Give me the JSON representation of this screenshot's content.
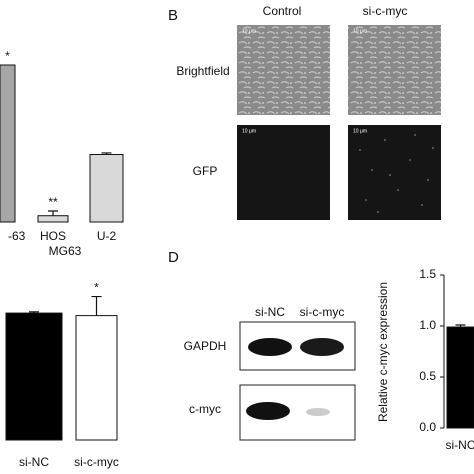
{
  "panel_labels": [
    "B",
    "D"
  ],
  "images": {
    "columns": [
      "Control",
      "si-c-myc"
    ],
    "rows": [
      "Brightfield",
      "GFP"
    ],
    "scale_bar": "10 μm"
  },
  "western_blot": {
    "lanes": [
      "si-NC",
      "si-c-myc"
    ],
    "rows": [
      "GAPDH",
      "c-myc"
    ]
  },
  "chart_data": [
    {
      "type": "bar",
      "categories": [
        "-63",
        "HOS",
        "U-2"
      ],
      "values": [
        1.0,
        0.04,
        0.43
      ],
      "errors": [
        null,
        0.03,
        0.01
      ],
      "annotations": [
        "*",
        "**",
        null
      ],
      "ylim": [
        0,
        1.2
      ],
      "colors": [
        "#a6a6a6",
        "#d9d9d9",
        "#d9d9d9"
      ]
    },
    {
      "type": "bar",
      "title": "MG63",
      "categories": [
        "si-NC",
        "si-c-myc"
      ],
      "values": [
        1.0,
        0.98
      ],
      "errors": [
        0.01,
        0.15
      ],
      "annotations": [
        null,
        "*"
      ],
      "ylim": [
        0,
        1.3
      ],
      "colors": [
        "#000000",
        "#ffffff"
      ]
    },
    {
      "type": "bar",
      "ylabel": "Relative c-myc expression",
      "categories": [
        "si-NC"
      ],
      "values": [
        0.99
      ],
      "errors": [
        0.02
      ],
      "ylim": [
        0,
        1.5
      ],
      "yticks": [
        {
          "value": 0,
          "label": "0.0"
        },
        0.5,
        {
          "value": 1,
          "label": "1.0"
        },
        1.5
      ],
      "colors": [
        "#000000"
      ]
    }
  ]
}
